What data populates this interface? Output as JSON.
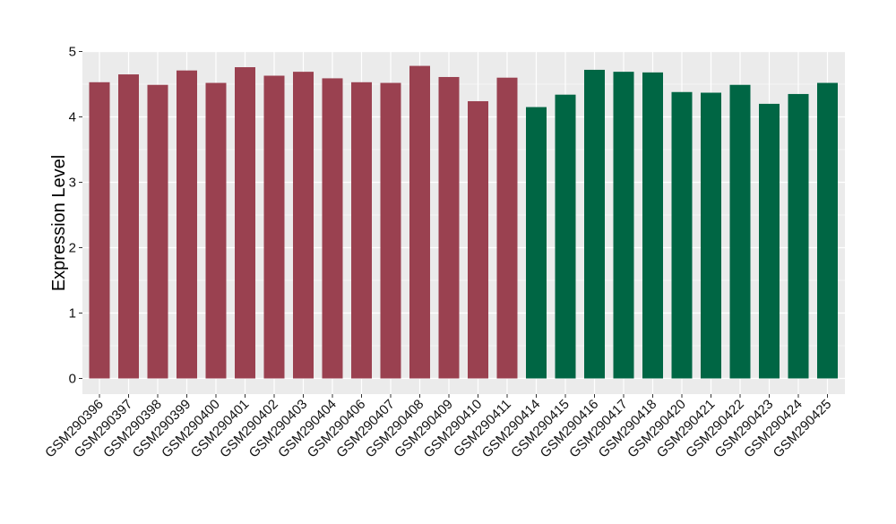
{
  "chart_data": {
    "type": "bar",
    "title": "",
    "xlabel": "",
    "ylabel": "Expression Level",
    "ylim": [
      0,
      5
    ],
    "yticks": [
      0,
      1,
      2,
      3,
      4,
      5
    ],
    "grid": true,
    "categories": [
      "GSM290396",
      "GSM290397",
      "GSM290398",
      "GSM290399",
      "GSM290400",
      "GSM290401",
      "GSM290402",
      "GSM290403",
      "GSM290404",
      "GSM290406",
      "GSM290407",
      "GSM290408",
      "GSM290409",
      "GSM290410",
      "GSM290411",
      "GSM290414",
      "GSM290415",
      "GSM290416",
      "GSM290417",
      "GSM290418",
      "GSM290420",
      "GSM290421",
      "GSM290422",
      "GSM290423",
      "GSM290424",
      "GSM290425"
    ],
    "values": [
      4.53,
      4.65,
      4.49,
      4.71,
      4.52,
      4.76,
      4.63,
      4.69,
      4.59,
      4.53,
      4.52,
      4.78,
      4.61,
      4.24,
      4.6,
      4.15,
      4.34,
      4.72,
      4.69,
      4.68,
      4.38,
      4.37,
      4.49,
      4.2,
      4.35,
      4.52
    ],
    "groups": [
      "a",
      "a",
      "a",
      "a",
      "a",
      "a",
      "a",
      "a",
      "a",
      "a",
      "a",
      "a",
      "a",
      "a",
      "a",
      "b",
      "b",
      "b",
      "b",
      "b",
      "b",
      "b",
      "b",
      "b",
      "b",
      "b"
    ],
    "colors": {
      "a": "#9A4150",
      "b": "#006644"
    },
    "panel_background": "#EBEBEB",
    "gridline_color": "#FFFFFF"
  }
}
